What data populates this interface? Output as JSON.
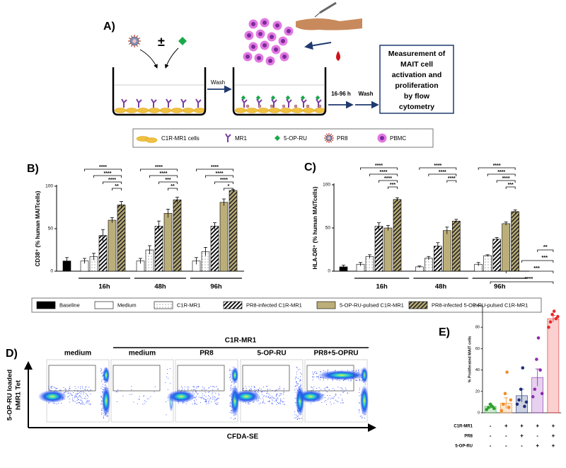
{
  "panel_a": {
    "label": "A)",
    "plus_minus": "±",
    "wash_1": "Wash",
    "time": "16-96 h",
    "wash_2": "Wash",
    "box_lines": [
      "Measurement of",
      "MAIT cell",
      "activation and",
      "proliferation",
      "by flow",
      "cytometry"
    ],
    "legend": [
      "C1R-MR1 cells",
      "MR1",
      "5-OP-RU",
      "PR8",
      "PBMC"
    ]
  },
  "panel_d": {
    "label": "D)",
    "group_title": "C1R-MR1",
    "plot_titles": [
      "medium",
      "medium",
      "PR8",
      "5-OP-RU",
      "PR8+5-OPRU"
    ],
    "ylabel_lines": [
      "5-OP-RU loaded",
      "hMR1 Tet"
    ],
    "xlabel": "CFDA-SE"
  },
  "chart_data": [
    {
      "type": "bar",
      "label": "B)",
      "ylabel": "CD38⁺ (% human MAITcells)",
      "ylim": [
        0,
        100
      ],
      "yticks": [
        0,
        50,
        100
      ],
      "categories": [
        "16h",
        "48h",
        "96h"
      ],
      "baseline": {
        "name": "Baseline",
        "color": "#000000",
        "value": 12,
        "error": 4
      },
      "series": [
        {
          "name": "Medium",
          "color": "#ffffff",
          "pattern": "none",
          "values": [
            12,
            12,
            12
          ],
          "errors": [
            3,
            3,
            4
          ]
        },
        {
          "name": "C1R-MR1",
          "color": "#ffffff",
          "pattern": "dots",
          "values": [
            17,
            25,
            23
          ],
          "errors": [
            4,
            5,
            5
          ]
        },
        {
          "name": "PR8-infected C1R-MR1",
          "color": "#ffffff",
          "pattern": "hatch",
          "values": [
            42,
            53,
            53
          ],
          "errors": [
            7,
            6,
            4
          ]
        },
        {
          "name": "5-OP-RU-pulsed C1R-MR1",
          "color": "#bcae78",
          "pattern": "none",
          "values": [
            60,
            68,
            81
          ],
          "errors": [
            3,
            5,
            4
          ]
        },
        {
          "name": "PR8-infected 5-OP-RU-pulsed C1R-MR1",
          "color": "#bcae78",
          "pattern": "hatch-olive",
          "values": [
            78,
            84,
            95
          ],
          "errors": [
            4,
            3,
            1
          ]
        }
      ],
      "brackets": [
        [
          "****",
          "****",
          "****",
          "**",
          null
        ],
        [
          "****",
          "****",
          "***",
          "**",
          null
        ],
        [
          "****",
          "****",
          "****",
          "*",
          null
        ]
      ]
    },
    {
      "type": "bar",
      "label": "C)",
      "ylabel": "HLA-DR⁺ (% human MAITcells)",
      "ylim": [
        0,
        100
      ],
      "yticks": [
        0,
        50,
        100
      ],
      "categories": [
        "16h",
        "48h",
        "96h"
      ],
      "baseline": {
        "color": "#000000",
        "value": 5,
        "error": 2
      },
      "series": [
        {
          "color": "#ffffff",
          "pattern": "none",
          "values": [
            8,
            5,
            8
          ],
          "errors": [
            2,
            1,
            2
          ]
        },
        {
          "color": "#ffffff",
          "pattern": "dots",
          "values": [
            17,
            15,
            18
          ],
          "errors": [
            2,
            2,
            1
          ]
        },
        {
          "color": "#ffffff",
          "pattern": "hatch",
          "values": [
            52,
            29,
            37
          ],
          "errors": [
            4,
            4,
            2
          ]
        },
        {
          "color": "#bcae78",
          "pattern": "none",
          "values": [
            50,
            47,
            55
          ],
          "errors": [
            3,
            4,
            2
          ]
        },
        {
          "color": "#bcae78",
          "pattern": "hatch-olive",
          "values": [
            83,
            58,
            69
          ],
          "errors": [
            2,
            2,
            2
          ]
        }
      ],
      "brackets": [
        [
          "****",
          "****",
          "****",
          "***",
          null
        ],
        [
          "****",
          "****",
          null,
          "****",
          null
        ],
        [
          "****",
          "****",
          "****",
          "***",
          null
        ]
      ]
    },
    {
      "type": "dot",
      "label": "E)",
      "ylabel": "% Proliferated MAIT cells",
      "ylim": [
        0,
        100
      ],
      "yticks": [
        0,
        20,
        40,
        60,
        80,
        100
      ],
      "colors": [
        "#2ca02c",
        "#f08c28",
        "#1f2f7a",
        "#8e2cb0",
        "#e8282a"
      ],
      "values": [
        6,
        9,
        16,
        33,
        88
      ],
      "errors": [
        2,
        5,
        6,
        8,
        3
      ],
      "points": [
        [
          3,
          5,
          8,
          6,
          4
        ],
        [
          2,
          8,
          18,
          38,
          5,
          12
        ],
        [
          8,
          12,
          22,
          42,
          6,
          10
        ],
        [
          15,
          22,
          50,
          70,
          40,
          18
        ],
        [
          80,
          85,
          92,
          95,
          88,
          90
        ]
      ],
      "brackets": [
        "****",
        "***",
        "***",
        "**",
        null
      ],
      "rows": [
        {
          "name": "C1R-MR1",
          "marks": [
            "-",
            "+",
            "+",
            "+",
            "+"
          ]
        },
        {
          "name": "PR8",
          "marks": [
            "-",
            "-",
            "+",
            "-",
            "+"
          ]
        },
        {
          "name": "5-OP-RU",
          "marks": [
            "-",
            "-",
            "-",
            "+",
            "+"
          ]
        }
      ]
    }
  ]
}
